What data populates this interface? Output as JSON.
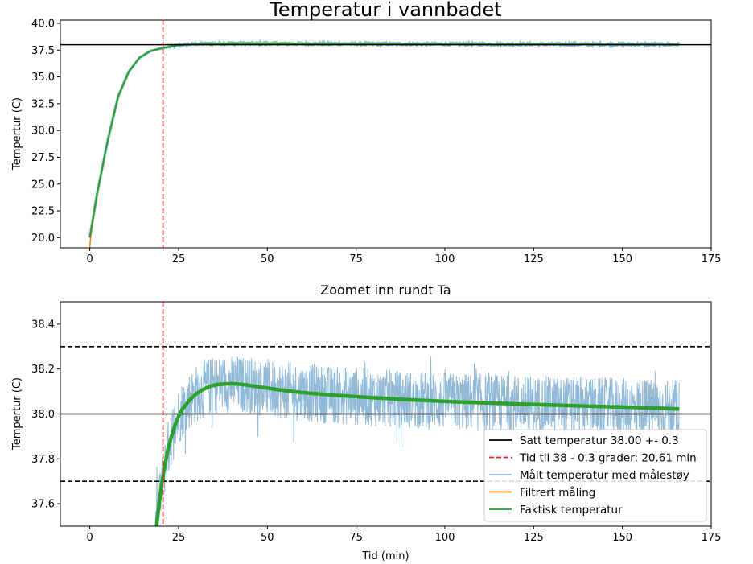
{
  "chart_data": [
    {
      "type": "line",
      "title": "Temperatur i vannbadet",
      "xlabel": "",
      "ylabel": "Tempertur (C)",
      "xlim": [
        -8.3,
        175
      ],
      "ylim": [
        19.05,
        40.3
      ],
      "xticks": [
        "0",
        "25",
        "50",
        "75",
        "100",
        "125",
        "150",
        "175"
      ],
      "yticks": [
        "20.0",
        "22.5",
        "25.0",
        "27.5",
        "30.0",
        "32.5",
        "35.0",
        "37.5",
        "40.0"
      ],
      "legend": "none",
      "grid": false,
      "setpoint": 38.0,
      "time_marker": 20.61,
      "series": [
        {
          "role": "measured",
          "color": "#8ab6d6",
          "x": [
            0,
            2,
            5,
            8,
            11,
            14,
            17,
            20.6,
            25,
            30,
            40,
            60,
            80,
            100,
            120,
            140,
            166
          ],
          "y": [
            20.0,
            24.0,
            29.0,
            33.2,
            35.5,
            36.8,
            37.4,
            37.7,
            37.95,
            38.08,
            38.13,
            38.1,
            38.08,
            38.06,
            38.05,
            38.04,
            38.02
          ]
        },
        {
          "role": "filtered",
          "color": "#ff7f0e",
          "x": [
            0,
            0.3,
            2,
            5,
            8,
            11,
            14,
            17,
            20.6,
            25,
            30,
            40,
            60,
            80,
            100,
            120,
            140,
            166
          ],
          "y": [
            19.1,
            20.3,
            24.0,
            29.0,
            33.2,
            35.5,
            36.8,
            37.4,
            37.7,
            37.95,
            38.08,
            38.13,
            38.1,
            38.08,
            38.06,
            38.05,
            38.04,
            38.02
          ]
        },
        {
          "role": "actual",
          "color": "#2ca02c",
          "x": [
            0,
            2,
            5,
            8,
            11,
            14,
            17,
            20.6,
            25,
            30,
            40,
            60,
            80,
            100,
            120,
            140,
            166
          ],
          "y": [
            20.0,
            24.0,
            29.0,
            33.2,
            35.5,
            36.8,
            37.4,
            37.7,
            37.95,
            38.08,
            38.13,
            38.1,
            38.08,
            38.06,
            38.05,
            38.04,
            38.02
          ]
        }
      ]
    },
    {
      "type": "line",
      "title": "Zoomet inn rundt Ta",
      "xlabel": "Tid (min)",
      "ylabel": "Tempertur (C)",
      "xlim": [
        -8.3,
        175
      ],
      "ylim": [
        37.5,
        38.5
      ],
      "xticks": [
        "0",
        "25",
        "50",
        "75",
        "100",
        "125",
        "150",
        "175"
      ],
      "yticks": [
        "37.6",
        "37.8",
        "38.0",
        "38.2",
        "38.4"
      ],
      "grid": false,
      "legend": "lower-right",
      "setpoint": 38.0,
      "tolerance": 0.3,
      "time_marker": 20.61,
      "noise_amplitude": 0.13,
      "legend_entries": [
        {
          "label": "Satt temperatur 38.00 +- 0.3",
          "color": "#000000",
          "style": "solid"
        },
        {
          "label": "Tid til 38 - 0.3 grader: 20.61 min",
          "color": "#d62728",
          "style": "dashed"
        },
        {
          "label": "Målt temperatur med målestøy",
          "color": "#8ab6d6",
          "style": "solid"
        },
        {
          "label": "Filtrert måling",
          "color": "#ff7f0e",
          "style": "solid"
        },
        {
          "label": "Faktisk temperatur",
          "color": "#2ca02c",
          "style": "solid"
        }
      ],
      "series": [
        {
          "role": "actual",
          "color": "#2ca02c",
          "x": [
            18.1,
            19,
            20,
            21,
            22,
            23,
            24,
            25,
            26,
            28,
            30,
            32,
            34,
            36,
            38,
            40,
            42,
            45,
            50,
            55,
            60,
            70,
            80,
            90,
            100,
            110,
            120,
            130,
            140,
            150,
            160,
            166
          ],
          "y": [
            37.4,
            37.53,
            37.66,
            37.76,
            37.84,
            37.9,
            37.95,
            37.99,
            38.02,
            38.06,
            38.09,
            38.11,
            38.124,
            38.131,
            38.134,
            38.135,
            38.133,
            38.127,
            38.115,
            38.104,
            38.095,
            38.082,
            38.072,
            38.063,
            38.056,
            38.05,
            38.045,
            38.04,
            38.035,
            38.031,
            38.026,
            38.022
          ]
        },
        {
          "role": "filtered",
          "color": "#ff7f0e",
          "x": [
            18.1,
            19,
            20,
            21,
            22,
            23,
            24,
            25,
            26,
            28,
            30,
            32,
            34,
            36,
            38,
            40,
            42,
            45,
            50,
            55,
            60,
            70,
            80,
            90,
            100,
            110,
            120,
            130,
            140,
            150,
            160,
            166
          ],
          "y": [
            37.4,
            37.53,
            37.66,
            37.76,
            37.84,
            37.9,
            37.95,
            37.99,
            38.02,
            38.06,
            38.09,
            38.11,
            38.124,
            38.131,
            38.134,
            38.135,
            38.133,
            38.127,
            38.115,
            38.104,
            38.095,
            38.082,
            38.072,
            38.063,
            38.056,
            38.05,
            38.045,
            38.04,
            38.035,
            38.031,
            38.026,
            38.022
          ]
        }
      ]
    }
  ]
}
